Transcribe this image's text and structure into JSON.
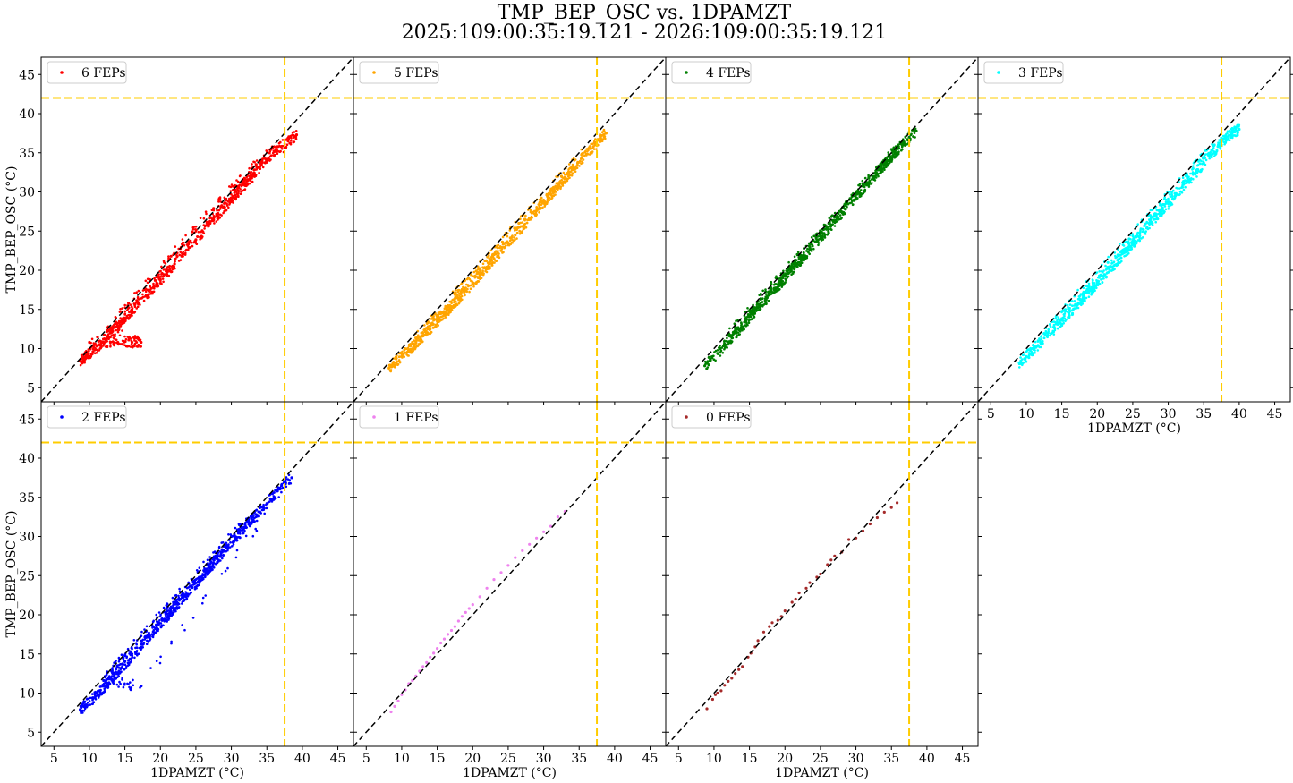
{
  "title_line1": "TMP_BEP_OSC vs. 1DPAMZT",
  "title_line2": "2025:109:00:35:19.121 - 2026:109:00:35:19.121",
  "chart_data": {
    "type": "scatter",
    "xlabel": "1DPAMZT (°C)",
    "ylabel": "TMP_BEP_OSC (°C)",
    "xlim": [
      3.2,
      47.2
    ],
    "ylim": [
      3.2,
      47.2
    ],
    "xticks": [
      5,
      10,
      15,
      20,
      25,
      30,
      35,
      40,
      45
    ],
    "yticks": [
      5,
      10,
      15,
      20,
      25,
      30,
      35,
      40,
      45
    ],
    "reference_lines": {
      "x_limit": 37.5,
      "y_limit": 42.0,
      "limit_color": "#ffcc00",
      "identity_line": "y = x",
      "identity_color": "#000000"
    },
    "legend_position": "top-left",
    "panels": [
      {
        "name": "6 FEPs",
        "color": "#ff0000",
        "points": [
          [
            8.7,
            8.4
          ],
          [
            9.5,
            9.0
          ],
          [
            10.5,
            9.6
          ],
          [
            11.5,
            10.4
          ],
          [
            12.0,
            11.2
          ],
          [
            13.0,
            12.0
          ],
          [
            14.0,
            12.9
          ],
          [
            15.0,
            13.9
          ],
          [
            16.0,
            14.9
          ],
          [
            17.0,
            15.8
          ],
          [
            18.0,
            16.8
          ],
          [
            19.0,
            17.8
          ],
          [
            20.0,
            18.8
          ],
          [
            21.0,
            19.8
          ],
          [
            22.0,
            20.8
          ],
          [
            23.0,
            21.8
          ],
          [
            24.0,
            22.9
          ],
          [
            25.0,
            23.9
          ],
          [
            26.0,
            24.9
          ],
          [
            27.0,
            26.0
          ],
          [
            28.0,
            27.0
          ],
          [
            29.0,
            28.0
          ],
          [
            30.0,
            29.0
          ],
          [
            31.0,
            30.1
          ],
          [
            32.0,
            31.1
          ],
          [
            33.0,
            32.1
          ],
          [
            34.0,
            33.2
          ],
          [
            35.0,
            34.2
          ],
          [
            36.0,
            35.2
          ],
          [
            37.0,
            35.8
          ],
          [
            38.0,
            36.5
          ],
          [
            39.2,
            37.3
          ],
          [
            10.0,
            10.8
          ],
          [
            12.0,
            10.8
          ],
          [
            14.0,
            10.8
          ],
          [
            16.0,
            10.8
          ],
          [
            17.3,
            10.8
          ],
          [
            12.5,
            12.3
          ],
          [
            15.5,
            15.8
          ],
          [
            18.5,
            18.8
          ],
          [
            21.5,
            21.8
          ],
          [
            24.5,
            24.9
          ],
          [
            27.5,
            27.9
          ],
          [
            30.5,
            30.8
          ],
          [
            33.5,
            33.5
          ],
          [
            36.5,
            35.8
          ]
        ]
      },
      {
        "name": "5 FEPs",
        "color": "#ffa500",
        "points": [
          [
            8.2,
            7.5
          ],
          [
            9.0,
            8.2
          ],
          [
            10.0,
            9.0
          ],
          [
            11.0,
            9.8
          ],
          [
            12.0,
            10.7
          ],
          [
            13.0,
            11.6
          ],
          [
            14.0,
            12.5
          ],
          [
            15.0,
            13.5
          ],
          [
            16.0,
            14.4
          ],
          [
            17.0,
            15.4
          ],
          [
            18.0,
            16.4
          ],
          [
            19.0,
            17.4
          ],
          [
            20.0,
            18.4
          ],
          [
            21.0,
            19.4
          ],
          [
            22.0,
            20.4
          ],
          [
            23.0,
            21.5
          ],
          [
            24.0,
            22.5
          ],
          [
            25.0,
            23.5
          ],
          [
            26.0,
            24.5
          ],
          [
            27.0,
            25.6
          ],
          [
            28.0,
            26.6
          ],
          [
            29.0,
            27.6
          ],
          [
            30.0,
            28.7
          ],
          [
            31.0,
            29.7
          ],
          [
            32.0,
            30.7
          ],
          [
            33.0,
            31.7
          ],
          [
            34.0,
            32.8
          ],
          [
            35.0,
            33.8
          ],
          [
            36.0,
            34.8
          ],
          [
            37.0,
            35.8
          ],
          [
            38.0,
            36.8
          ],
          [
            38.8,
            37.5
          ],
          [
            11.5,
            10.8
          ],
          [
            14.5,
            13.8
          ],
          [
            17.5,
            16.9
          ],
          [
            20.5,
            19.9
          ],
          [
            23.5,
            22.9
          ],
          [
            26.5,
            26.0
          ],
          [
            29.5,
            29.0
          ],
          [
            32.5,
            32.0
          ],
          [
            35.5,
            34.9
          ]
        ]
      },
      {
        "name": "4 FEPs",
        "color": "#008000",
        "points": [
          [
            8.7,
            7.8
          ],
          [
            9.5,
            8.5
          ],
          [
            10.5,
            9.4
          ],
          [
            11.5,
            10.4
          ],
          [
            12.5,
            11.4
          ],
          [
            13.5,
            12.4
          ],
          [
            14.5,
            13.4
          ],
          [
            15.5,
            14.5
          ],
          [
            16.5,
            15.5
          ],
          [
            17.5,
            16.5
          ],
          [
            18.5,
            17.5
          ],
          [
            19.5,
            18.5
          ],
          [
            20.5,
            19.6
          ],
          [
            21.5,
            20.6
          ],
          [
            22.5,
            21.6
          ],
          [
            23.5,
            22.7
          ],
          [
            24.5,
            23.7
          ],
          [
            25.5,
            24.7
          ],
          [
            26.5,
            25.8
          ],
          [
            27.5,
            26.8
          ],
          [
            28.5,
            27.8
          ],
          [
            29.5,
            28.9
          ],
          [
            30.5,
            29.9
          ],
          [
            31.5,
            30.9
          ],
          [
            32.5,
            31.9
          ],
          [
            33.5,
            33.0
          ],
          [
            34.5,
            34.0
          ],
          [
            35.5,
            35.0
          ],
          [
            36.5,
            36.0
          ],
          [
            37.5,
            37.0
          ],
          [
            38.5,
            37.8
          ],
          [
            12.0,
            11.8
          ],
          [
            15.0,
            14.8
          ],
          [
            18.0,
            17.8
          ],
          [
            21.0,
            20.8
          ],
          [
            24.0,
            23.8
          ],
          [
            27.0,
            26.8
          ],
          [
            30.0,
            29.8
          ],
          [
            33.0,
            32.8
          ],
          [
            36.0,
            35.8
          ]
        ]
      },
      {
        "name": "3 FEPs",
        "color": "#00ffff",
        "points": [
          [
            9.0,
            8.2
          ],
          [
            10.0,
            9.0
          ],
          [
            11.0,
            9.9
          ],
          [
            12.0,
            10.8
          ],
          [
            13.0,
            11.7
          ],
          [
            14.0,
            12.6
          ],
          [
            15.0,
            13.6
          ],
          [
            16.0,
            14.5
          ],
          [
            17.0,
            15.5
          ],
          [
            18.0,
            16.5
          ],
          [
            19.0,
            17.4
          ],
          [
            20.0,
            18.4
          ],
          [
            21.0,
            19.4
          ],
          [
            22.0,
            20.4
          ],
          [
            23.0,
            21.4
          ],
          [
            24.0,
            22.4
          ],
          [
            25.0,
            23.4
          ],
          [
            26.0,
            24.4
          ],
          [
            27.0,
            25.5
          ],
          [
            28.0,
            26.5
          ],
          [
            29.0,
            27.5
          ],
          [
            30.0,
            28.5
          ],
          [
            31.0,
            29.5
          ],
          [
            32.0,
            30.6
          ],
          [
            33.0,
            31.6
          ],
          [
            34.0,
            32.6
          ],
          [
            35.0,
            33.7
          ],
          [
            36.0,
            34.7
          ],
          [
            37.0,
            35.8
          ],
          [
            38.0,
            36.8
          ],
          [
            39.0,
            37.5
          ],
          [
            40.0,
            38.0
          ],
          [
            12.5,
            11.9
          ],
          [
            15.5,
            15.0
          ],
          [
            18.5,
            18.0
          ],
          [
            21.5,
            21.0
          ],
          [
            24.5,
            24.0
          ],
          [
            27.5,
            27.0
          ],
          [
            30.5,
            30.0
          ],
          [
            33.5,
            33.0
          ],
          [
            36.5,
            36.0
          ]
        ]
      },
      {
        "name": "2 FEPs",
        "color": "#0000ff",
        "points": [
          [
            8.7,
            7.9
          ],
          [
            9.5,
            8.5
          ],
          [
            10.5,
            9.3
          ],
          [
            11.5,
            10.2
          ],
          [
            12.5,
            11.2
          ],
          [
            13.5,
            12.2
          ],
          [
            14.5,
            13.2
          ],
          [
            15.5,
            14.2
          ],
          [
            16.5,
            15.2
          ],
          [
            17.5,
            16.2
          ],
          [
            18.5,
            17.3
          ],
          [
            19.5,
            18.3
          ],
          [
            20.5,
            19.4
          ],
          [
            21.5,
            20.4
          ],
          [
            22.5,
            21.4
          ],
          [
            23.5,
            22.5
          ],
          [
            24.5,
            23.5
          ],
          [
            25.5,
            24.5
          ],
          [
            26.5,
            25.6
          ],
          [
            27.5,
            26.6
          ],
          [
            28.5,
            27.6
          ],
          [
            29.5,
            28.7
          ],
          [
            30.5,
            29.7
          ],
          [
            31.5,
            30.8
          ],
          [
            32.5,
            31.8
          ],
          [
            33.5,
            32.8
          ],
          [
            34.5,
            33.8
          ],
          [
            35.5,
            34.8
          ],
          [
            36.5,
            35.8
          ],
          [
            37.5,
            36.8
          ],
          [
            38.5,
            37.5
          ],
          [
            17.3,
            10.9
          ],
          [
            12.0,
            11.6
          ],
          [
            15.0,
            14.8
          ],
          [
            18.0,
            17.9
          ],
          [
            21.0,
            21.0
          ],
          [
            24.0,
            24.0
          ],
          [
            27.0,
            27.0
          ],
          [
            30.0,
            30.0
          ],
          [
            33.0,
            32.5
          ]
        ]
      },
      {
        "name": "1 FEPs",
        "color": "#ee82ee",
        "points": [
          [
            8.5,
            7.6
          ],
          [
            9.0,
            8.3
          ],
          [
            9.5,
            9.0
          ],
          [
            10.0,
            9.8
          ],
          [
            10.5,
            10.4
          ],
          [
            11.0,
            11.2
          ],
          [
            11.5,
            11.6
          ],
          [
            12.0,
            12.2
          ],
          [
            12.5,
            12.8
          ],
          [
            13.0,
            13.4
          ],
          [
            13.5,
            13.9
          ],
          [
            14.0,
            14.6
          ],
          [
            14.5,
            15.1
          ],
          [
            15.0,
            15.7
          ],
          [
            15.5,
            16.4
          ],
          [
            16.0,
            16.9
          ],
          [
            16.5,
            17.5
          ],
          [
            17.0,
            18.0
          ],
          [
            17.5,
            18.5
          ],
          [
            18.0,
            19.2
          ],
          [
            18.5,
            19.8
          ],
          [
            19.0,
            20.3
          ],
          [
            19.5,
            20.8
          ],
          [
            20.0,
            21.3
          ],
          [
            21.0,
            22.3
          ],
          [
            22.0,
            23.4
          ],
          [
            23.0,
            24.5
          ],
          [
            24.0,
            25.4
          ],
          [
            25.0,
            26.3
          ],
          [
            26.0,
            27.3
          ],
          [
            27.0,
            28.2
          ],
          [
            28.0,
            29.0
          ],
          [
            29.0,
            29.8
          ],
          [
            30.0,
            30.6
          ],
          [
            31.0,
            31.3
          ],
          [
            32.0,
            32.5
          ],
          [
            33.0,
            33.2
          ]
        ]
      },
      {
        "name": "0 FEPs",
        "color": "#a52a2a",
        "points": [
          [
            9.0,
            8.0
          ],
          [
            9.8,
            9.2
          ],
          [
            10.2,
            9.8
          ],
          [
            10.5,
            10.0
          ],
          [
            11.0,
            10.3
          ],
          [
            11.5,
            11.0
          ],
          [
            12.0,
            11.5
          ],
          [
            12.5,
            11.9
          ],
          [
            13.0,
            12.5
          ],
          [
            13.5,
            13.0
          ],
          [
            14.0,
            13.4
          ],
          [
            14.8,
            14.6
          ],
          [
            15.2,
            15.1
          ],
          [
            15.8,
            15.9
          ],
          [
            16.2,
            16.7
          ],
          [
            17.0,
            17.8
          ],
          [
            17.8,
            18.5
          ],
          [
            18.2,
            19.0
          ],
          [
            19.0,
            19.3
          ],
          [
            19.5,
            19.8
          ],
          [
            20.0,
            20.5
          ],
          [
            21.0,
            21.6
          ],
          [
            21.5,
            22.0
          ],
          [
            22.0,
            22.8
          ],
          [
            23.0,
            23.4
          ],
          [
            23.5,
            24.1
          ],
          [
            24.5,
            24.8
          ],
          [
            25.0,
            25.2
          ],
          [
            26.0,
            26.4
          ],
          [
            26.5,
            27.0
          ],
          [
            27.0,
            27.5
          ],
          [
            28.0,
            28.0
          ],
          [
            29.0,
            29.6
          ],
          [
            30.0,
            29.8
          ],
          [
            31.0,
            30.7
          ],
          [
            32.0,
            31.6
          ],
          [
            33.0,
            32.4
          ],
          [
            34.0,
            33.1
          ],
          [
            35.0,
            33.7
          ],
          [
            35.8,
            34.3
          ]
        ]
      }
    ]
  }
}
